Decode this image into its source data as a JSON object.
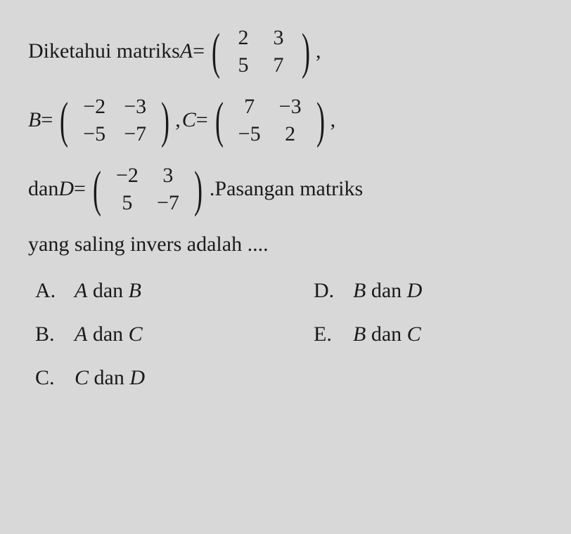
{
  "text": {
    "intro1": "Diketahui matriks ",
    "eqA": "A",
    "spA": " = ",
    "commaA": ",",
    "eqB": "B",
    "spB": " = ",
    "commaB": ", ",
    "eqC": "C",
    "spC": " = ",
    "commaC": ",",
    "dan": "dan ",
    "eqD": "D",
    "spD": " = ",
    "period": ". ",
    "tail1": "Pasangan matriks",
    "line5": "yang saling invers adalah ...."
  },
  "matrix": {
    "A": [
      [
        "2",
        "3"
      ],
      [
        "5",
        "7"
      ]
    ],
    "B": [
      [
        "−2",
        "−3"
      ],
      [
        "−5",
        "−7"
      ]
    ],
    "C": [
      [
        "7",
        "−3"
      ],
      [
        "−5",
        "2"
      ]
    ],
    "D": [
      [
        "−2",
        "3"
      ],
      [
        "5",
        "−7"
      ]
    ]
  },
  "options": {
    "A": {
      "letter": "A.",
      "pre": "A",
      "mid": " dan ",
      "post": "B"
    },
    "B": {
      "letter": "B.",
      "pre": "A",
      "mid": " dan ",
      "post": "C"
    },
    "C": {
      "letter": "C.",
      "pre": "C",
      "mid": " dan ",
      "post": "D"
    },
    "D": {
      "letter": "D.",
      "pre": "B",
      "mid": " dan ",
      "post": "D"
    },
    "E": {
      "letter": "E.",
      "pre": "B",
      "mid": " dan ",
      "post": "C"
    }
  },
  "colors": {
    "background": "#d8d8d8",
    "text": "#1a1a1a"
  },
  "font": {
    "body_size": 30,
    "matrix_paren_size": 72
  }
}
